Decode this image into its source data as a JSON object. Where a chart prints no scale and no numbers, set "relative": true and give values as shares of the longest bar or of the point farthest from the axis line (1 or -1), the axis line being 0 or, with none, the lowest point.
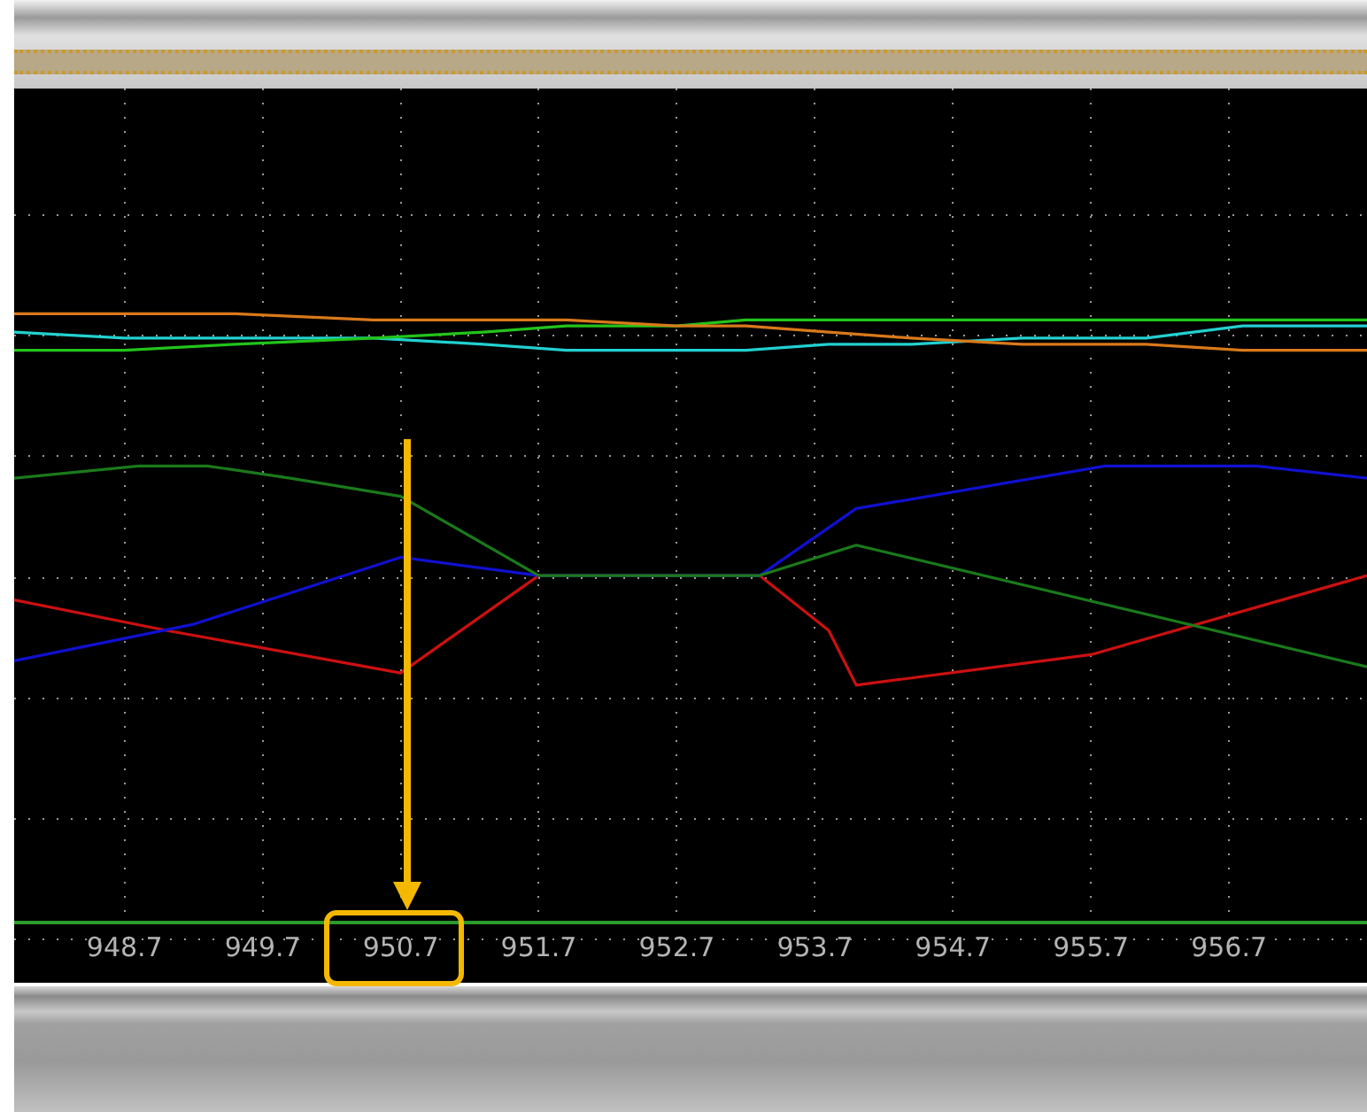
{
  "chart_data": {
    "type": "line",
    "relative": true,
    "xlim": [
      947.9,
      957.7
    ],
    "xticks": [
      948.7,
      949.7,
      950.7,
      951.7,
      952.7,
      953.7,
      954.7,
      955.7,
      956.7
    ],
    "grid": true,
    "legend": false,
    "marker": "none",
    "line_style": "solid",
    "series": [
      {
        "color": "#d9791a",
        "x": [
          947.9,
          948.7,
          949.5,
          950.5,
          951.3,
          951.9,
          952.7,
          953.2,
          953.8,
          954.4,
          955.2,
          956.1,
          956.8,
          957.7
        ],
        "values": [
          1.0,
          1.0,
          1.0,
          0.99,
          0.99,
          0.99,
          0.98,
          0.98,
          0.97,
          0.96,
          0.95,
          0.95,
          0.94,
          0.94
        ]
      },
      {
        "color": "#22c41a",
        "x": [
          947.9,
          948.7,
          949.5,
          950.5,
          951.3,
          951.9,
          952.7,
          953.2,
          953.8,
          954.4,
          955.2,
          956.1,
          956.8,
          957.7
        ],
        "values": [
          0.94,
          0.94,
          0.95,
          0.96,
          0.97,
          0.98,
          0.98,
          0.99,
          0.99,
          0.99,
          0.99,
          0.99,
          0.99,
          0.99
        ]
      },
      {
        "color": "#22d0d0",
        "x": [
          947.9,
          948.7,
          949.5,
          950.5,
          951.3,
          951.9,
          952.7,
          953.2,
          953.8,
          954.4,
          955.2,
          956.1,
          956.8,
          957.7
        ],
        "values": [
          0.97,
          0.96,
          0.96,
          0.96,
          0.95,
          0.94,
          0.94,
          0.94,
          0.95,
          0.95,
          0.96,
          0.96,
          0.98,
          0.98
        ]
      },
      {
        "color": "#1a7a1a",
        "x": [
          947.9,
          948.8,
          949.3,
          949.9,
          950.7,
          951.7,
          953.3,
          954.0,
          957.7
        ],
        "values": [
          0.73,
          0.75,
          0.75,
          0.73,
          0.7,
          0.57,
          0.57,
          0.62,
          0.42
        ]
      },
      {
        "color": "#1010d0",
        "x": [
          947.9,
          949.2,
          950.7,
          951.7,
          953.3,
          954.0,
          955.8,
          956.9,
          957.7
        ],
        "values": [
          0.43,
          0.49,
          0.6,
          0.57,
          0.57,
          0.68,
          0.75,
          0.75,
          0.73
        ]
      },
      {
        "color": "#cc1010",
        "x": [
          947.9,
          949.0,
          950.7,
          951.7,
          953.3,
          953.8,
          954.0,
          955.7,
          957.7
        ],
        "values": [
          0.53,
          0.48,
          0.41,
          0.57,
          0.57,
          0.48,
          0.39,
          0.44,
          0.57
        ]
      }
    ]
  }
}
